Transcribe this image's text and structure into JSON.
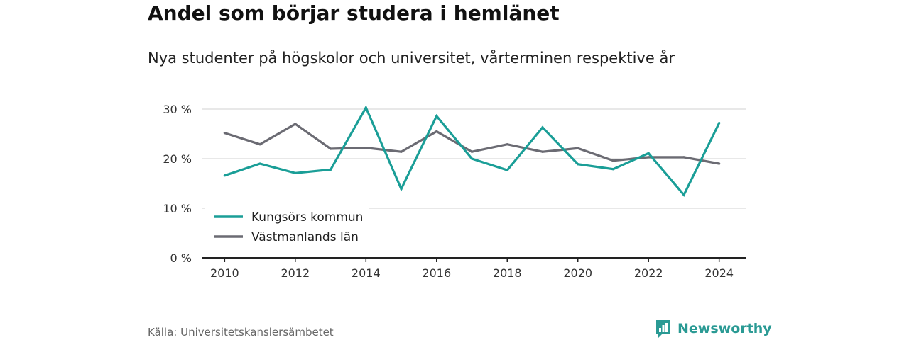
{
  "header": {
    "title": "Andel som börjar studera i hemlänet",
    "subtitle": "Nya studenter på högskolor och universitet, vårterminen respektive år"
  },
  "footer": {
    "source": "Källa: Universitetskanslersämbetet",
    "brand": "Newsworthy"
  },
  "colors": {
    "kungsor": "#1a9e97",
    "lan": "#6b6b73",
    "grid": "#d9d9d9",
    "axis": "#222222",
    "brand": "#2a9a94"
  },
  "icons": {
    "logo": "chart-bubble-icon"
  },
  "chart_data": {
    "type": "line",
    "title": "Andel som börjar studera i hemlänet",
    "subtitle": "Nya studenter på högskolor och universitet, vårterminen respektive år",
    "x": [
      2010,
      2011,
      2012,
      2013,
      2014,
      2015,
      2016,
      2017,
      2018,
      2019,
      2020,
      2021,
      2022,
      2023,
      2024
    ],
    "series": [
      {
        "name": "Kungsörs kommun",
        "values": [
          16.6,
          19.0,
          17.1,
          17.8,
          30.3,
          13.9,
          28.6,
          20.0,
          17.7,
          26.3,
          18.9,
          17.9,
          21.1,
          12.7,
          27.2
        ]
      },
      {
        "name": "Västmanlands län",
        "values": [
          25.2,
          22.9,
          27.0,
          22.0,
          22.2,
          21.4,
          25.5,
          21.4,
          22.9,
          21.4,
          22.1,
          19.6,
          20.3,
          20.3,
          19.0
        ]
      }
    ],
    "ylim": [
      0,
      30
    ],
    "yticks": [
      0,
      10,
      20,
      30
    ],
    "ytick_labels": [
      "0 %",
      "10 %",
      "20 %",
      "30 %"
    ],
    "xticks": [
      2010,
      2012,
      2014,
      2016,
      2018,
      2020,
      2022,
      2024
    ],
    "xtick_labels": [
      "2010",
      "2012",
      "2014",
      "2016",
      "2018",
      "2020",
      "2022",
      "2024"
    ],
    "grid": true,
    "legend": "bottom-left"
  }
}
